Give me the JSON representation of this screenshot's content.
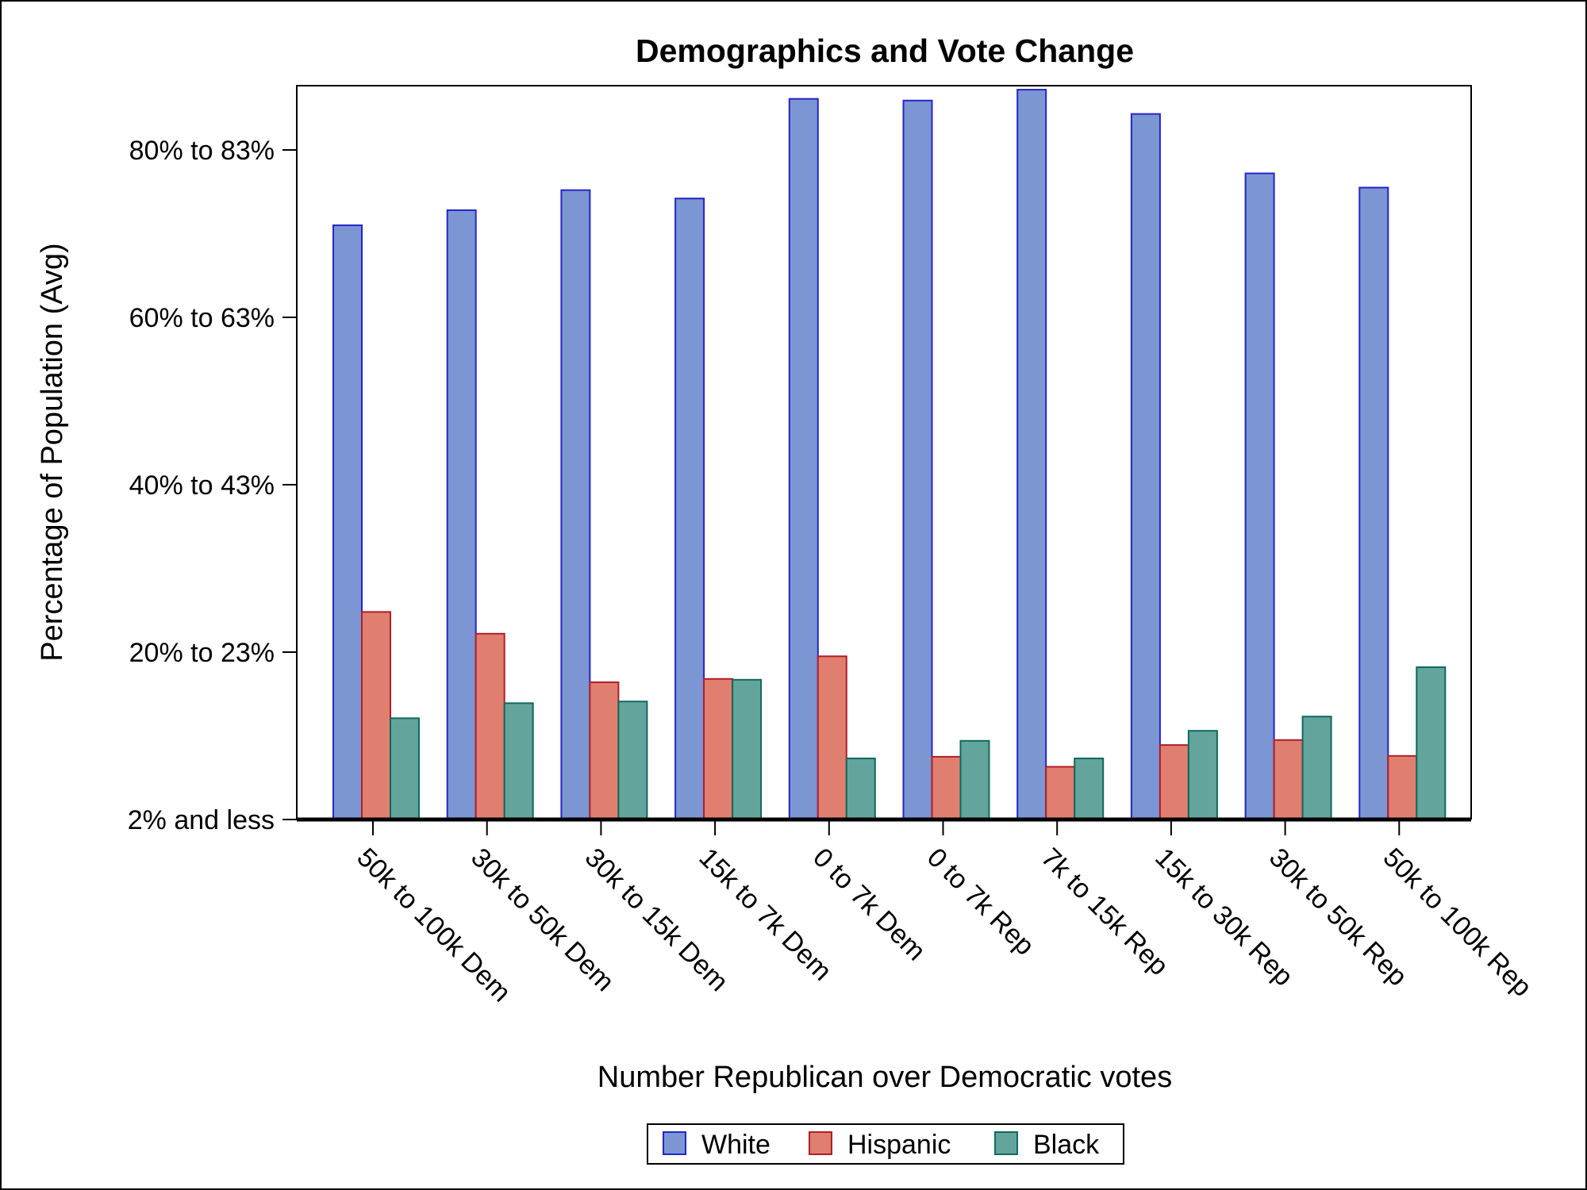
{
  "chart_data": {
    "type": "bar",
    "title": "Demographics and Vote Change",
    "xlabel": "Number Republican over Democratic votes",
    "ylabel": "Percentage of Population (Avg)",
    "ylim": [
      2,
      90
    ],
    "yticks": [
      {
        "value": 2,
        "label": "2% and less"
      },
      {
        "value": 22,
        "label": "20% to 23%"
      },
      {
        "value": 42,
        "label": "40% to 43%"
      },
      {
        "value": 62,
        "label": "60% to 63%"
      },
      {
        "value": 82,
        "label": "80% to 83%"
      }
    ],
    "categories": [
      "50k to 100k Dem",
      "30k to 50k Dem",
      "30k to 15k Dem",
      "15k to 7k Dem",
      "0 to 7k Dem",
      "0 to 7k Rep",
      "7k to 15k Rep",
      "15k to 30k Rep",
      "30k to 50k Rep",
      "50k to 100k Rep"
    ],
    "series": [
      {
        "name": "White",
        "color": "#7b96d2",
        "stroke": "#2525c8",
        "values": [
          73.0,
          74.8,
          77.2,
          76.2,
          88.1,
          87.9,
          89.2,
          86.3,
          79.2,
          77.5
        ]
      },
      {
        "name": "Hispanic",
        "color": "#e07f6f",
        "stroke": "#b01e2a",
        "values": [
          26.8,
          24.2,
          18.4,
          18.8,
          21.5,
          9.5,
          8.3,
          10.9,
          11.5,
          9.6
        ]
      },
      {
        "name": "Black",
        "color": "#63a59d",
        "stroke": "#11685c",
        "values": [
          14.1,
          15.9,
          16.1,
          18.7,
          9.3,
          11.4,
          9.3,
          12.6,
          14.3,
          20.2
        ]
      }
    ],
    "grid": false,
    "legend_position": "bottom"
  }
}
